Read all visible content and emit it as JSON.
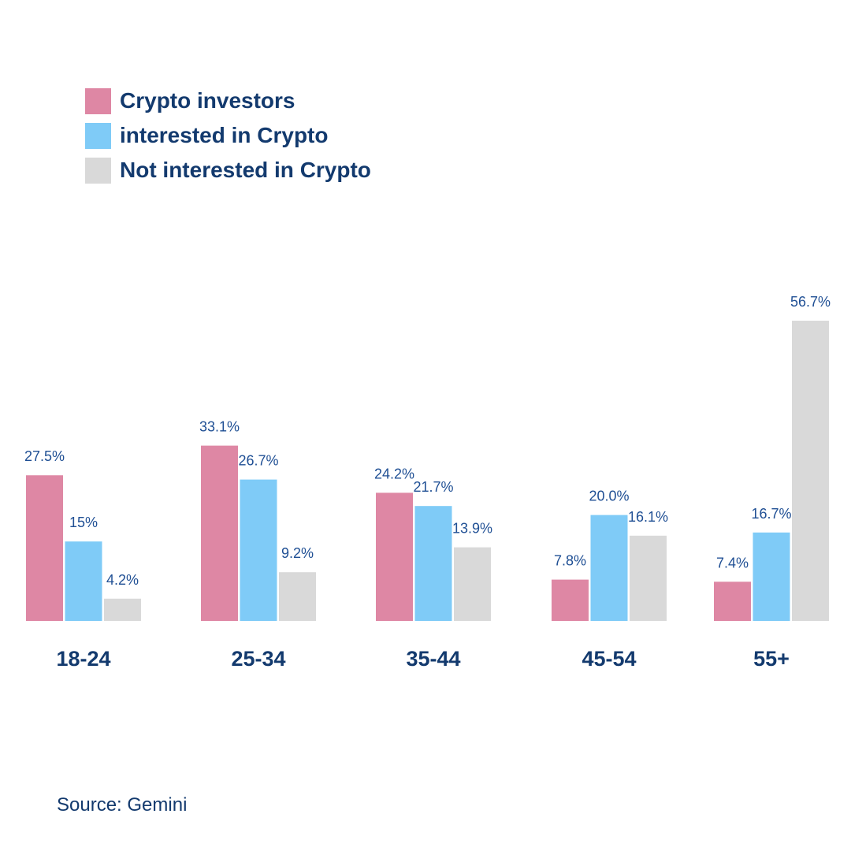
{
  "chart_data": {
    "type": "bar",
    "categories": [
      "18-24",
      "25-34",
      "35-44",
      "45-54",
      "55+"
    ],
    "series": [
      {
        "name": "Crypto investors",
        "color": "#de87a4",
        "values": [
          27.5,
          33.1,
          24.2,
          7.8,
          7.4
        ],
        "labels": [
          "27.5%",
          "33.1%",
          "24.2%",
          "7.8%",
          "7.4%"
        ]
      },
      {
        "name": "interested in Crypto",
        "color": "#7fcbf7",
        "values": [
          15,
          26.7,
          21.7,
          20.0,
          16.7
        ],
        "labels": [
          "15%",
          "26.7%",
          "21.7%",
          "20.0%",
          "16.7%"
        ]
      },
      {
        "name": "Not interested in Crypto",
        "color": "#d9d9d9",
        "values": [
          4.2,
          9.2,
          13.9,
          16.1,
          56.7
        ],
        "labels": [
          "4.2%",
          "9.2%",
          "13.9%",
          "16.1%",
          "56.7%"
        ]
      }
    ],
    "legend_position": "top-left",
    "grid": false,
    "axes_visible": false
  },
  "source": "Source: Gemini"
}
